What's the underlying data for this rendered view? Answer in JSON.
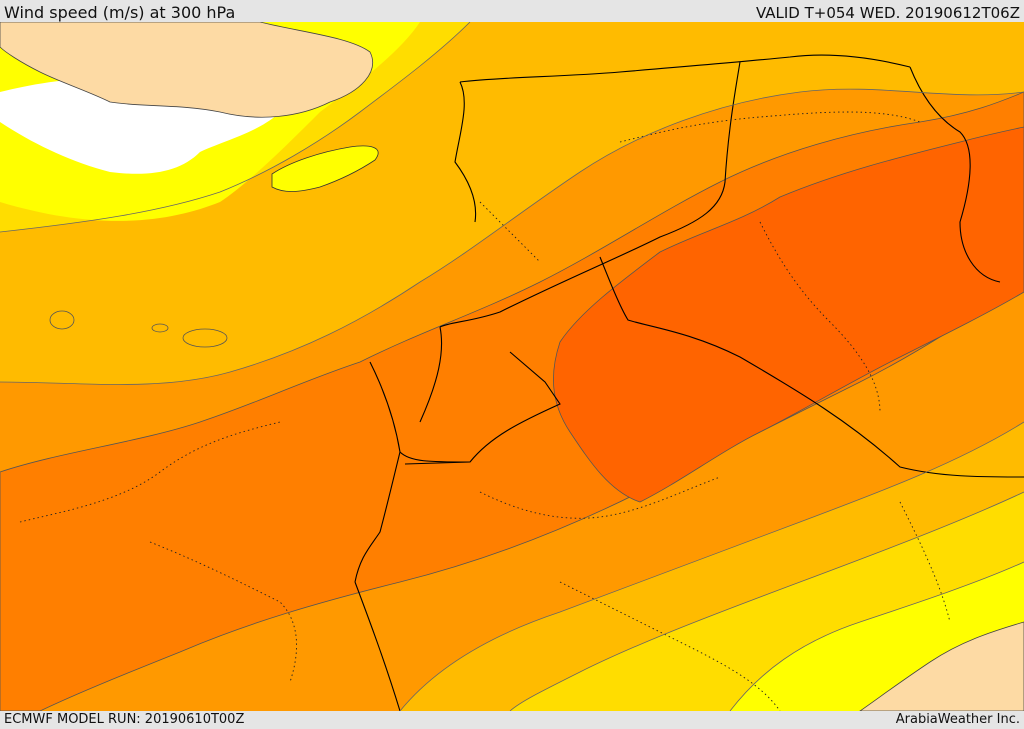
{
  "header": {
    "title": "Wind speed (m/s) at 300 hPa",
    "valid": "VALID T+054 WED. 20190612T06Z"
  },
  "footer": {
    "model_run": "ECMWF MODEL RUN: 20190610T00Z",
    "credit": "ArabiaWeather Inc."
  },
  "colors": {
    "land_tan": "#fddaa4",
    "calm_white": "#ffffff",
    "band_1": "#ffff00",
    "band_2": "#ffdd00",
    "band_3": "#ffbb00",
    "band_4": "#ff9900",
    "band_5": "#ff7f00",
    "band_6": "#ff6400",
    "border": "#000000"
  }
}
